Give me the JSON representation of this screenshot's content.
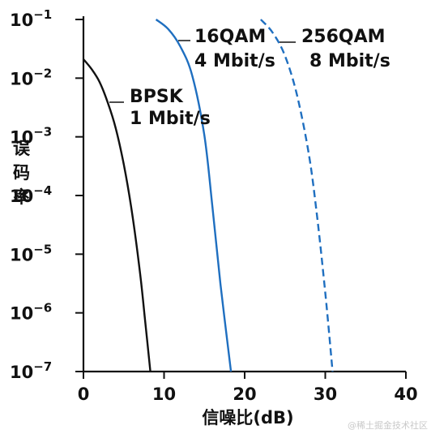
{
  "chart_data": {
    "type": "line",
    "xlabel": "信噪比(dB)",
    "ylabel": "误码率",
    "xlim": [
      0,
      40
    ],
    "ylim_log10": [
      -7,
      -1
    ],
    "y_scale": "log",
    "xticks": [
      0,
      10,
      20,
      30,
      40
    ],
    "xtick_labels": [
      "0",
      "10",
      "20",
      "30",
      "40"
    ],
    "yticks": [
      -1,
      -2,
      -3,
      -4,
      -5,
      -6,
      -7
    ],
    "grid": false,
    "series": [
      {
        "name": "BPSK",
        "label_lines": [
          "BPSK",
          "1 Mbit/s"
        ],
        "color": "#111111",
        "dash": "solid",
        "points": [
          [
            0,
            0.021
          ],
          [
            1,
            0.0143
          ],
          [
            2,
            0.0086
          ],
          [
            3,
            0.0039
          ],
          [
            4,
            0.00141
          ],
          [
            5,
            0.00034
          ],
          [
            6,
            5.4e-05
          ],
          [
            7,
            5.1e-06
          ],
          [
            7.6,
            8.6e-07
          ],
          [
            8.3,
            1e-07
          ]
        ]
      },
      {
        "name": "16QAM",
        "label_lines": [
          "16QAM",
          "4 Mbit/s"
        ],
        "color": "#1f6fc0",
        "dash": "solid",
        "points": [
          [
            9,
            0.1
          ],
          [
            10.5,
            0.069
          ],
          [
            12,
            0.035
          ],
          [
            13.5,
            0.011
          ],
          [
            15,
            0.00105
          ],
          [
            16,
            6.4e-05
          ],
          [
            17,
            3.1e-06
          ],
          [
            18.3,
            1e-07
          ]
        ]
      },
      {
        "name": "256QAM",
        "label_lines": [
          "256QAM",
          "8 Mbit/s"
        ],
        "color": "#1f6fc0",
        "dash": "dashed",
        "points": [
          [
            22,
            0.1
          ],
          [
            23.5,
            0.059
          ],
          [
            25,
            0.024
          ],
          [
            26.5,
            0.0051
          ],
          [
            28,
            0.00047
          ],
          [
            29,
            4.2e-05
          ],
          [
            30,
            2.2e-06
          ],
          [
            30.9,
            1e-07
          ]
        ]
      }
    ]
  },
  "watermark": "@稀土掘金技术社区"
}
